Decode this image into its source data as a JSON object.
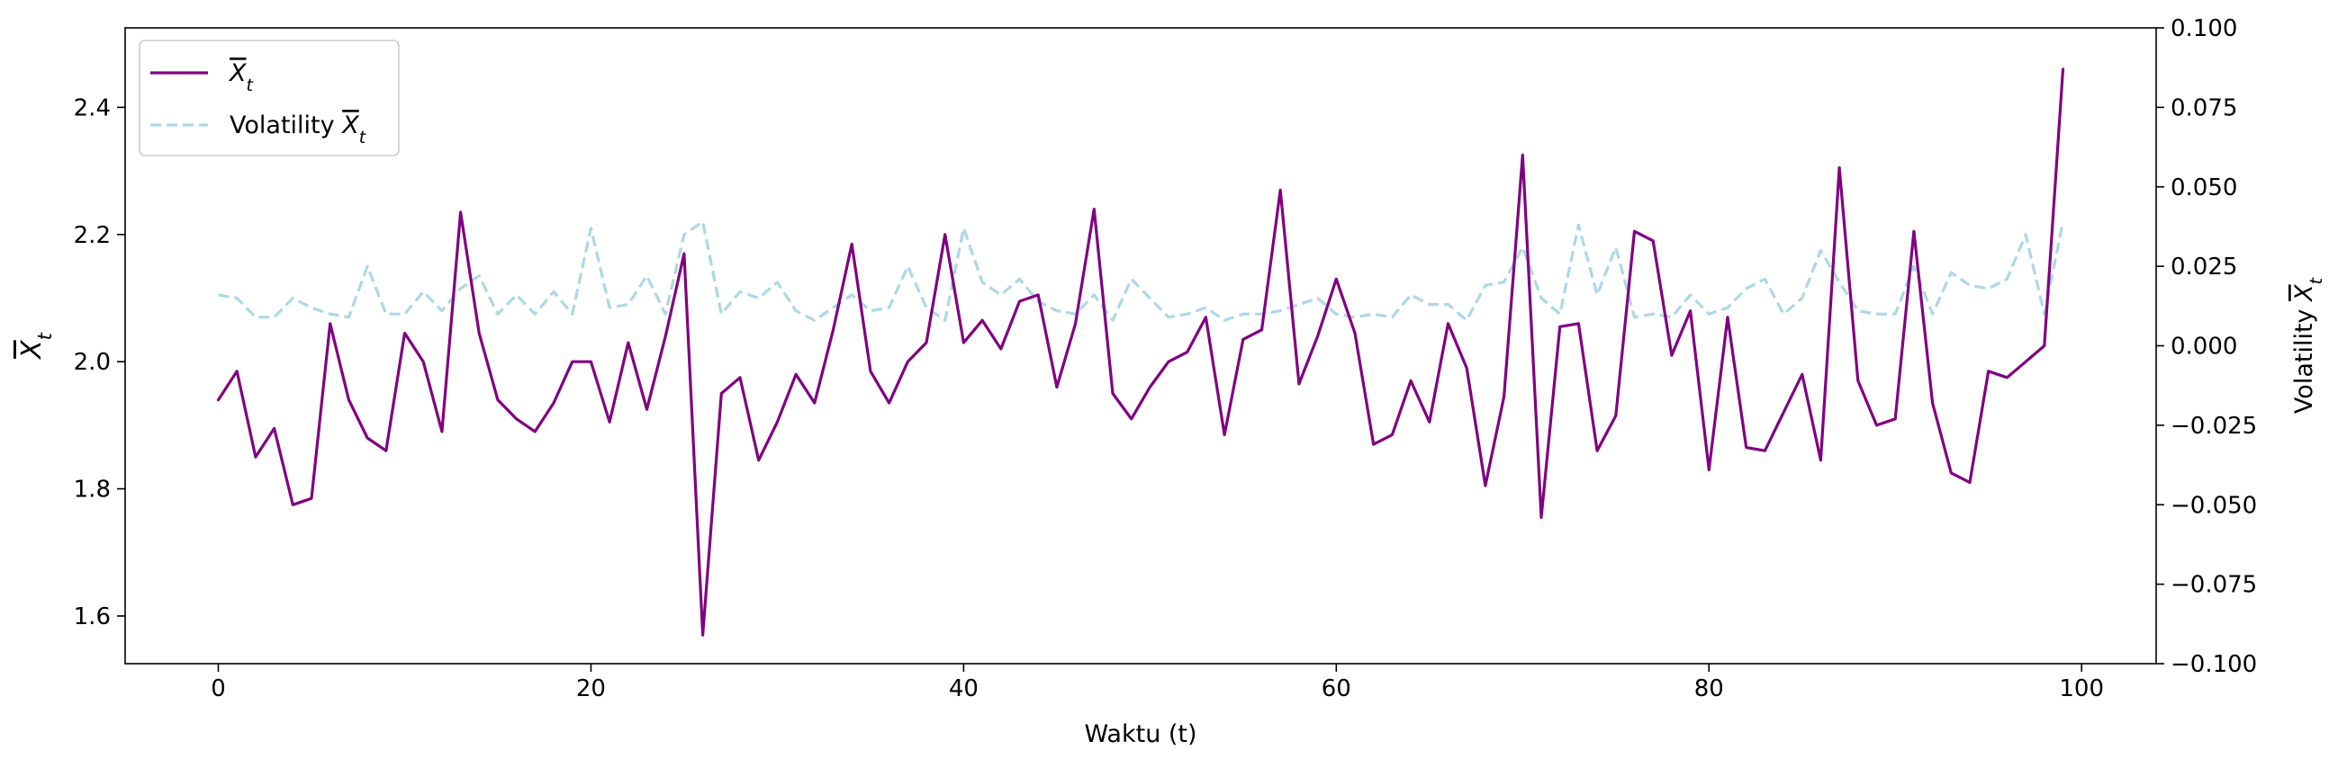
{
  "chart_data": {
    "type": "line",
    "xlabel": "Waktu (t)",
    "ylabel_left": "X̅t",
    "ylabel_right": "Volatility X̅t",
    "xlim": [
      -5,
      104
    ],
    "ylim_left": [
      1.525,
      2.525
    ],
    "ylim_right": [
      -0.1,
      0.1
    ],
    "x_ticks": [
      0,
      20,
      40,
      60,
      80,
      100
    ],
    "y_left_ticks": [
      1.6,
      1.8,
      2.0,
      2.2,
      2.4
    ],
    "y_right_ticks": [
      -0.1,
      -0.075,
      -0.05,
      -0.025,
      0.0,
      0.025,
      0.05,
      0.075,
      0.1
    ],
    "x_tick_labels": [
      "0",
      "20",
      "40",
      "60",
      "80",
      "100"
    ],
    "y_left_tick_labels": [
      "1.6",
      "1.8",
      "2.0",
      "2.2",
      "2.4"
    ],
    "y_right_tick_labels": [
      "−0.100",
      "−0.075",
      "−0.050",
      "−0.025",
      "0.000",
      "0.025",
      "0.050",
      "0.075",
      "0.100"
    ],
    "grid": false,
    "legend_position": "upper-left",
    "series": [
      {
        "name": "X̅t",
        "axis": "left",
        "color": "#800080",
        "style": "solid",
        "x": [
          0,
          1,
          2,
          3,
          4,
          5,
          6,
          7,
          8,
          9,
          10,
          11,
          12,
          13,
          14,
          15,
          16,
          17,
          18,
          19,
          20,
          21,
          22,
          23,
          24,
          25,
          26,
          27,
          28,
          29,
          30,
          31,
          32,
          33,
          34,
          35,
          36,
          37,
          38,
          39,
          40,
          41,
          42,
          43,
          44,
          45,
          46,
          47,
          48,
          49,
          50,
          51,
          52,
          53,
          54,
          55,
          56,
          57,
          58,
          59,
          60,
          61,
          62,
          63,
          64,
          65,
          66,
          67,
          68,
          69,
          70,
          71,
          72,
          73,
          74,
          75,
          76,
          77,
          78,
          79,
          80,
          81,
          82,
          83,
          84,
          85,
          86,
          87,
          88,
          89,
          90,
          91,
          92,
          93,
          94,
          95,
          96,
          97,
          98,
          99
        ],
        "values": [
          1.94,
          1.985,
          1.85,
          1.895,
          1.775,
          1.785,
          2.06,
          1.94,
          1.88,
          1.86,
          2.045,
          2.0,
          1.89,
          2.235,
          2.045,
          1.94,
          1.91,
          1.89,
          1.935,
          2.0,
          2.0,
          1.905,
          2.03,
          1.925,
          2.04,
          2.17,
          1.57,
          1.95,
          1.975,
          1.845,
          1.905,
          1.98,
          1.935,
          2.05,
          2.185,
          1.985,
          1.935,
          2.0,
          2.03,
          2.2,
          2.03,
          2.065,
          2.02,
          2.095,
          2.105,
          1.96,
          2.06,
          2.24,
          1.95,
          1.91,
          1.96,
          2.0,
          2.015,
          2.07,
          1.885,
          2.035,
          2.05,
          2.27,
          1.965,
          2.04,
          2.13,
          2.045,
          1.87,
          1.885,
          1.97,
          1.905,
          2.06,
          1.99,
          1.805,
          1.945,
          2.325,
          1.755,
          2.055,
          2.06,
          1.86,
          1.915,
          2.205,
          2.19,
          2.01,
          2.08,
          1.83,
          2.07,
          1.865,
          1.86,
          1.92,
          1.98,
          1.845,
          2.305,
          1.97,
          1.9,
          1.91,
          2.205,
          1.935,
          1.825,
          1.81,
          1.985,
          1.975,
          2.0,
          2.025,
          2.46
        ]
      },
      {
        "name": "Volatility X̅t",
        "axis": "right",
        "color": "#add8e6",
        "style": "dashed",
        "x": [
          0,
          1,
          2,
          3,
          4,
          5,
          6,
          7,
          8,
          9,
          10,
          11,
          12,
          13,
          14,
          15,
          16,
          17,
          18,
          19,
          20,
          21,
          22,
          23,
          24,
          25,
          26,
          27,
          28,
          29,
          30,
          31,
          32,
          33,
          34,
          35,
          36,
          37,
          38,
          39,
          40,
          41,
          42,
          43,
          44,
          45,
          46,
          47,
          48,
          49,
          50,
          51,
          52,
          53,
          54,
          55,
          56,
          57,
          58,
          59,
          60,
          61,
          62,
          63,
          64,
          65,
          66,
          67,
          68,
          69,
          70,
          71,
          72,
          73,
          74,
          75,
          76,
          77,
          78,
          79,
          80,
          81,
          82,
          83,
          84,
          85,
          86,
          87,
          88,
          89,
          90,
          91,
          92,
          93,
          94,
          95,
          96,
          97,
          98,
          99
        ],
        "values": [
          0.016,
          0.015,
          0.009,
          0.009,
          0.015,
          0.012,
          0.01,
          0.009,
          0.025,
          0.01,
          0.01,
          0.017,
          0.011,
          0.018,
          0.022,
          0.01,
          0.016,
          0.01,
          0.017,
          0.01,
          0.037,
          0.012,
          0.013,
          0.022,
          0.01,
          0.035,
          0.039,
          0.01,
          0.017,
          0.015,
          0.02,
          0.011,
          0.008,
          0.012,
          0.016,
          0.011,
          0.012,
          0.025,
          0.012,
          0.008,
          0.037,
          0.02,
          0.016,
          0.021,
          0.014,
          0.011,
          0.01,
          0.016,
          0.008,
          0.021,
          0.015,
          0.009,
          0.01,
          0.012,
          0.008,
          0.01,
          0.01,
          0.011,
          0.013,
          0.015,
          0.01,
          0.009,
          0.01,
          0.009,
          0.016,
          0.013,
          0.013,
          0.008,
          0.019,
          0.02,
          0.031,
          0.015,
          0.01,
          0.038,
          0.016,
          0.031,
          0.009,
          0.01,
          0.009,
          0.016,
          0.01,
          0.012,
          0.018,
          0.021,
          0.01,
          0.015,
          0.03,
          0.02,
          0.011,
          0.01,
          0.01,
          0.025,
          0.01,
          0.023,
          0.019,
          0.018,
          0.021,
          0.035,
          0.01,
          0.039
        ]
      }
    ]
  },
  "legend": {
    "items": [
      {
        "label": "X̅t",
        "color": "#800080",
        "style": "solid"
      },
      {
        "label": "Volatility X̅t",
        "color": "#add8e6",
        "style": "dashed"
      }
    ]
  }
}
